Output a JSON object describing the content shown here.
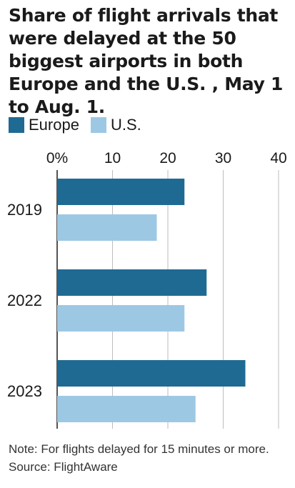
{
  "title": "Share of flight arrivals that were delayed at the 50 biggest airports in both Europe and the U.S. , May 1 to Aug. 1.",
  "note": "Note: For flights delayed for 15 minutes or more.",
  "source": "Source: FlightAware",
  "chart_data": {
    "type": "bar",
    "orientation": "horizontal",
    "categories": [
      "2019",
      "2022",
      "2023"
    ],
    "series": [
      {
        "name": "Europe",
        "color": "#1f6a93",
        "values": [
          23,
          27,
          34
        ]
      },
      {
        "name": "U.S.",
        "color": "#9dc8e4",
        "values": [
          18,
          23,
          25
        ]
      }
    ],
    "xlim": [
      0,
      40
    ],
    "xticks": [
      0,
      10,
      20,
      30,
      40
    ],
    "xtick_labels": [
      "0%",
      "10",
      "20",
      "30",
      "40"
    ],
    "grid": true,
    "legend_position": "top-left"
  }
}
